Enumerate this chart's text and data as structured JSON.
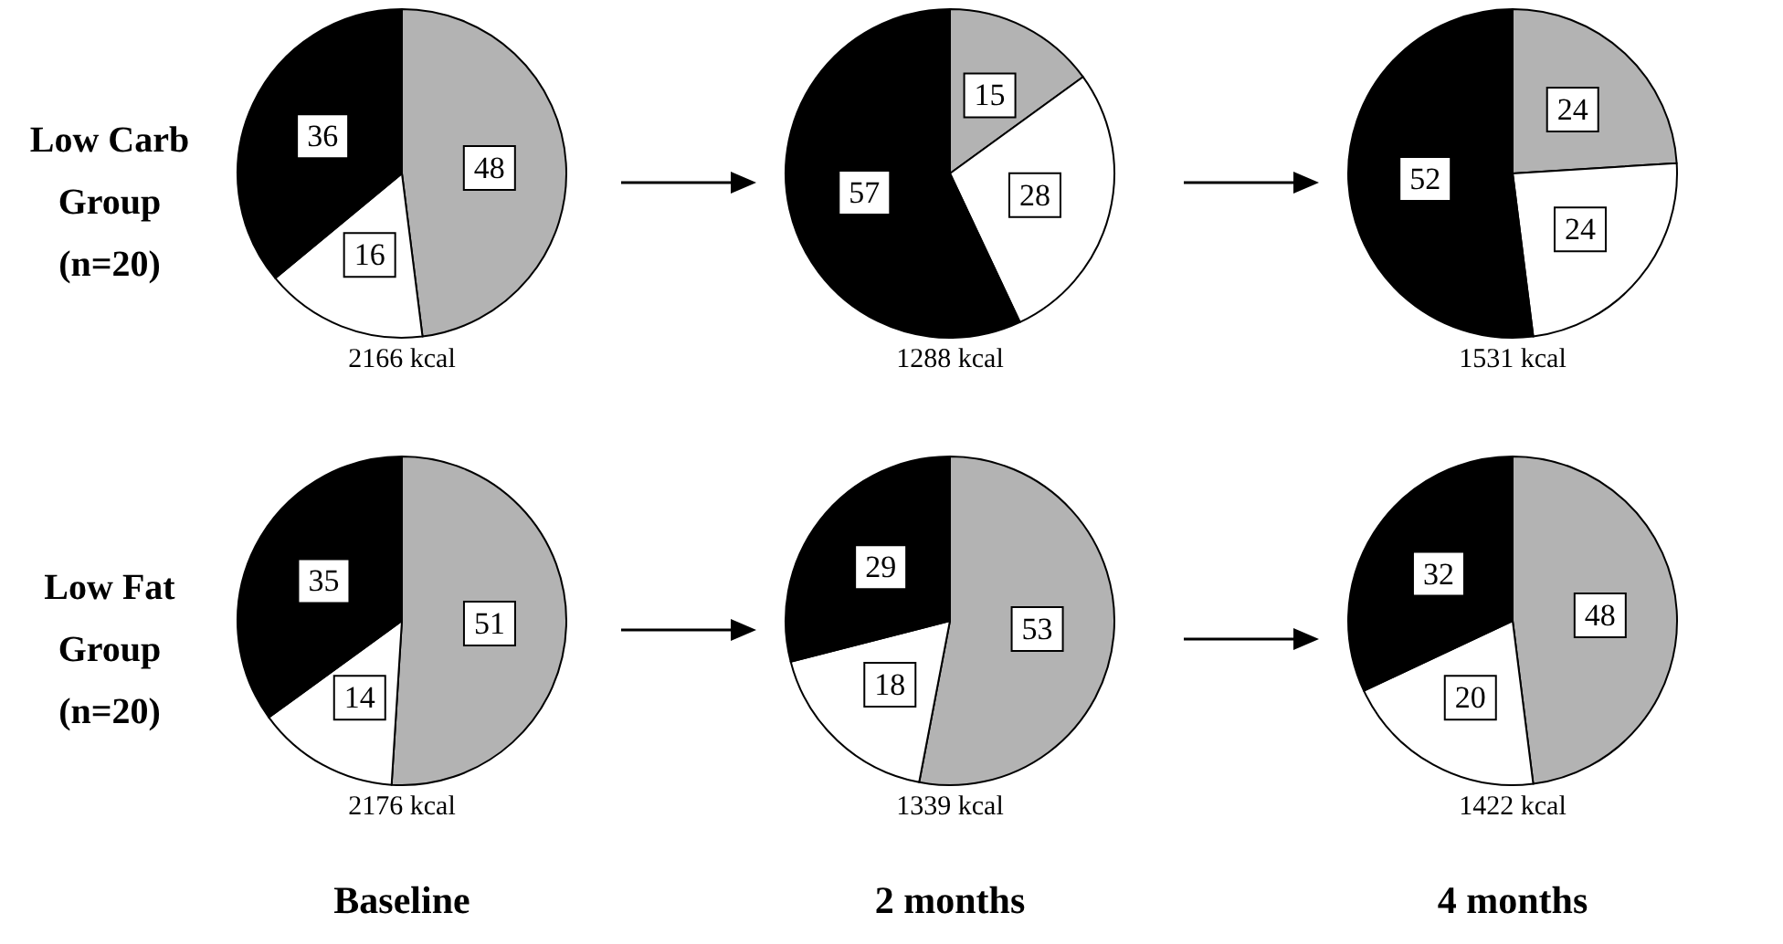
{
  "chart_data": [
    {
      "type": "pie",
      "ylabel": "Low Carb Group (n=20)",
      "categories": [
        null,
        null,
        null
      ],
      "values": [
        48,
        16,
        36
      ],
      "colors": [
        "#b3b3b3",
        "#ffffff",
        "#000000"
      ],
      "data_labels": true,
      "annotations": [
        "2166 kcal"
      ]
    },
    {
      "type": "pie",
      "categories": [
        null,
        null,
        null
      ],
      "values": [
        15,
        28,
        57
      ],
      "colors": [
        "#b3b3b3",
        "#ffffff",
        "#000000"
      ],
      "data_labels": true,
      "annotations": [
        "1288 kcal"
      ]
    },
    {
      "type": "pie",
      "categories": [
        null,
        null,
        null
      ],
      "values": [
        24,
        24,
        52
      ],
      "colors": [
        "#b3b3b3",
        "#ffffff",
        "#000000"
      ],
      "data_labels": true,
      "annotations": [
        "1531 kcal"
      ]
    },
    {
      "type": "pie",
      "ylabel": "Low Fat Group (n=20)",
      "xlabel": "Baseline",
      "categories": [
        null,
        null,
        null
      ],
      "values": [
        51,
        14,
        35
      ],
      "colors": [
        "#b3b3b3",
        "#ffffff",
        "#000000"
      ],
      "data_labels": true,
      "annotations": [
        "2176 kcal"
      ]
    },
    {
      "type": "pie",
      "xlabel": "2 months",
      "categories": [
        null,
        null,
        null
      ],
      "values": [
        53,
        18,
        29
      ],
      "colors": [
        "#b3b3b3",
        "#ffffff",
        "#000000"
      ],
      "data_labels": true,
      "annotations": [
        "1339 kcal"
      ]
    },
    {
      "type": "pie",
      "xlabel": "4 months",
      "categories": [
        null,
        null,
        null
      ],
      "values": [
        48,
        20,
        32
      ],
      "colors": [
        "#b3b3b3",
        "#ffffff",
        "#000000"
      ],
      "data_labels": true,
      "annotations": [
        "1422 kcal"
      ]
    }
  ]
}
